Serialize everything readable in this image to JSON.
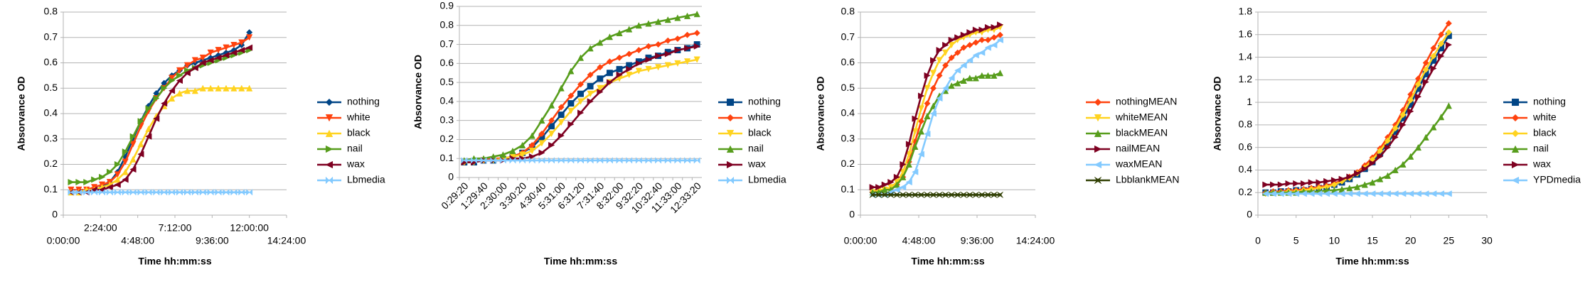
{
  "chart_data": [
    {
      "type": "line",
      "x_label": "Time hh:mm:ss",
      "y_label": "Absorvance OD",
      "x": [
        1800,
        3600,
        5400,
        7200,
        9000,
        10800,
        12600,
        14400,
        16200,
        18000,
        19800,
        21600,
        23400,
        25200,
        27000,
        28800,
        30600,
        32400,
        34200,
        36000,
        37800,
        39600,
        41400,
        43200
      ],
      "xlim": [
        0,
        51840
      ],
      "xticks": [
        {
          "value": 0,
          "label": "0:00:00"
        },
        {
          "value": 8640,
          "label": "2:24:00"
        },
        {
          "value": 17280,
          "label": "4:48:00"
        },
        {
          "value": 25920,
          "label": "7:12:00"
        },
        {
          "value": 34560,
          "label": "9:36:00"
        },
        {
          "value": 43200,
          "label": "12:00:00"
        },
        {
          "value": 51840,
          "label": "14:24:00"
        }
      ],
      "ylim": [
        0,
        0.8
      ],
      "yticks": [
        0,
        0.1,
        0.2,
        0.3,
        0.4,
        0.5,
        0.6,
        0.7,
        0.8
      ],
      "grid": true,
      "legend": "right",
      "series": [
        {
          "name": "nothing",
          "color": "#004586",
          "marker": "diamond",
          "values": [
            0.09,
            0.09,
            0.1,
            0.1,
            0.11,
            0.13,
            0.17,
            0.23,
            0.3,
            0.37,
            0.43,
            0.48,
            0.52,
            0.55,
            0.57,
            0.59,
            0.6,
            0.61,
            0.62,
            0.63,
            0.64,
            0.65,
            0.67,
            0.72
          ]
        },
        {
          "name": "white",
          "color": "#ff420e",
          "marker": "tri-down",
          "values": [
            0.1,
            0.1,
            0.1,
            0.11,
            0.12,
            0.13,
            0.16,
            0.21,
            0.28,
            0.35,
            0.41,
            0.46,
            0.5,
            0.54,
            0.57,
            0.59,
            0.61,
            0.62,
            0.64,
            0.65,
            0.66,
            0.67,
            0.68,
            0.7
          ]
        },
        {
          "name": "black",
          "color": "#ffd320",
          "marker": "tri-up",
          "values": [
            0.09,
            0.09,
            0.1,
            0.1,
            0.11,
            0.12,
            0.14,
            0.17,
            0.22,
            0.28,
            0.34,
            0.39,
            0.43,
            0.46,
            0.48,
            0.49,
            0.49,
            0.5,
            0.5,
            0.5,
            0.5,
            0.5,
            0.5,
            0.5
          ]
        },
        {
          "name": "nail",
          "color": "#579d1c",
          "marker": "tri-right",
          "values": [
            0.13,
            0.13,
            0.13,
            0.14,
            0.15,
            0.17,
            0.2,
            0.25,
            0.31,
            0.37,
            0.42,
            0.46,
            0.5,
            0.53,
            0.55,
            0.57,
            0.58,
            0.59,
            0.6,
            0.61,
            0.62,
            0.63,
            0.64,
            0.65
          ]
        },
        {
          "name": "wax",
          "color": "#7e0021",
          "marker": "tri-left",
          "values": [
            0.09,
            0.09,
            0.09,
            0.1,
            0.1,
            0.11,
            0.12,
            0.14,
            0.18,
            0.24,
            0.31,
            0.38,
            0.44,
            0.49,
            0.53,
            0.56,
            0.58,
            0.6,
            0.61,
            0.62,
            0.63,
            0.64,
            0.65,
            0.66
          ]
        },
        {
          "name": "Lbmedia",
          "color": "#83caff",
          "marker": "bowtie",
          "values": [
            0.09,
            0.09,
            0.09,
            0.09,
            0.09,
            0.09,
            0.09,
            0.09,
            0.09,
            0.09,
            0.09,
            0.09,
            0.09,
            0.09,
            0.09,
            0.09,
            0.09,
            0.09,
            0.09,
            0.09,
            0.09,
            0.09,
            0.09,
            0.09
          ]
        }
      ]
    },
    {
      "type": "line",
      "x_label": "Time hh:mm:ss",
      "y_label": "Absorvance OD",
      "categories": [
        "0:29:20",
        null,
        "1:29:40",
        null,
        "2:30:00",
        null,
        "3:30:20",
        null,
        "4:30:40",
        null,
        "5:31:00",
        null,
        "6:31:20",
        null,
        "7:31:40",
        null,
        "8:32:00",
        null,
        "9:32:20",
        null,
        "10:32:40",
        null,
        "11:33:00",
        null,
        "12:33:20"
      ],
      "ylim": [
        0,
        0.9
      ],
      "yticks": [
        0,
        0.1,
        0.2,
        0.3,
        0.4,
        0.5,
        0.6,
        0.7,
        0.8,
        0.9
      ],
      "grid": true,
      "legend": "right",
      "series": [
        {
          "name": "nothing",
          "color": "#004586",
          "marker": "square",
          "values": [
            0.08,
            0.08,
            0.09,
            0.09,
            0.1,
            0.11,
            0.13,
            0.16,
            0.21,
            0.27,
            0.33,
            0.39,
            0.44,
            0.48,
            0.52,
            0.55,
            0.57,
            0.59,
            0.61,
            0.63,
            0.64,
            0.66,
            0.67,
            0.68,
            0.7
          ]
        },
        {
          "name": "white",
          "color": "#ff420e",
          "marker": "diamond",
          "values": [
            0.08,
            0.09,
            0.09,
            0.1,
            0.1,
            0.11,
            0.13,
            0.17,
            0.23,
            0.3,
            0.37,
            0.43,
            0.49,
            0.54,
            0.58,
            0.61,
            0.63,
            0.65,
            0.67,
            0.69,
            0.7,
            0.72,
            0.73,
            0.75,
            0.76
          ]
        },
        {
          "name": "black",
          "color": "#ffd320",
          "marker": "tri-down",
          "values": [
            0.08,
            0.08,
            0.09,
            0.09,
            0.1,
            0.11,
            0.12,
            0.14,
            0.18,
            0.23,
            0.29,
            0.35,
            0.4,
            0.44,
            0.47,
            0.5,
            0.52,
            0.54,
            0.56,
            0.57,
            0.58,
            0.59,
            0.6,
            0.61,
            0.62
          ]
        },
        {
          "name": "nail",
          "color": "#579d1c",
          "marker": "tri-up",
          "values": [
            0.09,
            0.1,
            0.1,
            0.11,
            0.12,
            0.14,
            0.17,
            0.22,
            0.3,
            0.38,
            0.47,
            0.56,
            0.63,
            0.68,
            0.71,
            0.74,
            0.76,
            0.78,
            0.8,
            0.81,
            0.82,
            0.83,
            0.84,
            0.85,
            0.86
          ]
        },
        {
          "name": "wax",
          "color": "#7e0021",
          "marker": "tri-right",
          "values": [
            0.08,
            0.08,
            0.09,
            0.09,
            0.09,
            0.1,
            0.1,
            0.11,
            0.13,
            0.17,
            0.22,
            0.28,
            0.34,
            0.4,
            0.45,
            0.5,
            0.54,
            0.57,
            0.6,
            0.62,
            0.64,
            0.65,
            0.67,
            0.68,
            0.69
          ]
        },
        {
          "name": "Lbmedia",
          "color": "#83caff",
          "marker": "bowtie",
          "values": [
            0.09,
            0.09,
            0.09,
            0.09,
            0.09,
            0.09,
            0.09,
            0.09,
            0.09,
            0.09,
            0.09,
            0.09,
            0.09,
            0.09,
            0.09,
            0.09,
            0.09,
            0.09,
            0.09,
            0.09,
            0.09,
            0.09,
            0.09,
            0.09,
            0.09
          ]
        }
      ]
    },
    {
      "type": "line",
      "x_label": "Time hh:mm:ss",
      "y_label": "Absorvance OD",
      "x": [
        3600,
        5400,
        7200,
        9000,
        10800,
        12600,
        14400,
        16200,
        18000,
        19800,
        21600,
        23400,
        25200,
        27000,
        28800,
        30600,
        32400,
        34200,
        36000,
        37800,
        39600,
        41400
      ],
      "xlim": [
        0,
        51840
      ],
      "xticks": [
        {
          "value": 0,
          "label": "0:00:00"
        },
        {
          "value": 17280,
          "label": "4:48:00"
        },
        {
          "value": 34560,
          "label": "9:36:00"
        },
        {
          "value": 51840,
          "label": "14:24:00"
        }
      ],
      "ylim": [
        0,
        0.8
      ],
      "yticks": [
        0,
        0.1,
        0.2,
        0.3,
        0.4,
        0.5,
        0.6,
        0.7,
        0.8
      ],
      "grid": true,
      "legend": "right",
      "series": [
        {
          "name": "nothingMEAN",
          "color": "#ff420e",
          "marker": "diamond",
          "values": [
            0.09,
            0.09,
            0.1,
            0.1,
            0.12,
            0.15,
            0.21,
            0.29,
            0.37,
            0.44,
            0.5,
            0.55,
            0.59,
            0.62,
            0.64,
            0.66,
            0.67,
            0.68,
            0.69,
            0.69,
            0.7,
            0.71
          ]
        },
        {
          "name": "whiteMEAN",
          "color": "#ffd320",
          "marker": "tri-down",
          "values": [
            0.09,
            0.1,
            0.1,
            0.11,
            0.13,
            0.17,
            0.24,
            0.33,
            0.42,
            0.5,
            0.56,
            0.61,
            0.64,
            0.67,
            0.69,
            0.7,
            0.71,
            0.72,
            0.72,
            0.73,
            0.73,
            0.74
          ]
        },
        {
          "name": "blackMEAN",
          "color": "#579d1c",
          "marker": "tri-up",
          "values": [
            0.09,
            0.09,
            0.1,
            0.1,
            0.12,
            0.15,
            0.2,
            0.27,
            0.33,
            0.39,
            0.43,
            0.47,
            0.49,
            0.51,
            0.52,
            0.53,
            0.54,
            0.54,
            0.55,
            0.55,
            0.55,
            0.56
          ]
        },
        {
          "name": "nailMEAN",
          "color": "#7e0021",
          "marker": "tri-right",
          "values": [
            0.11,
            0.11,
            0.12,
            0.13,
            0.15,
            0.2,
            0.28,
            0.38,
            0.47,
            0.55,
            0.61,
            0.65,
            0.67,
            0.69,
            0.7,
            0.71,
            0.72,
            0.73,
            0.73,
            0.74,
            0.74,
            0.75
          ]
        },
        {
          "name": "waxMEAN",
          "color": "#83caff",
          "marker": "tri-left",
          "values": [
            0.08,
            0.08,
            0.08,
            0.09,
            0.1,
            0.11,
            0.13,
            0.17,
            0.24,
            0.32,
            0.4,
            0.46,
            0.5,
            0.54,
            0.57,
            0.59,
            0.61,
            0.63,
            0.64,
            0.66,
            0.67,
            0.69
          ]
        },
        {
          "name": "LbblankMEAN",
          "color": "#314004",
          "marker": "x",
          "values": [
            0.08,
            0.08,
            0.08,
            0.08,
            0.08,
            0.08,
            0.08,
            0.08,
            0.08,
            0.08,
            0.08,
            0.08,
            0.08,
            0.08,
            0.08,
            0.08,
            0.08,
            0.08,
            0.08,
            0.08,
            0.08,
            0.08
          ]
        }
      ]
    },
    {
      "type": "line",
      "x_label": "Time hh:mm:ss",
      "y_label": "Absorvance OD",
      "x": [
        1,
        2,
        3,
        4,
        5,
        6,
        7,
        8,
        9,
        10,
        11,
        12,
        13,
        14,
        15,
        16,
        17,
        18,
        19,
        20,
        21,
        22,
        23,
        24,
        25
      ],
      "xlim": [
        0,
        30
      ],
      "xticks": [
        0,
        5,
        10,
        15,
        20,
        25,
        30
      ],
      "ylim": [
        0,
        1.8
      ],
      "yticks": [
        0,
        0.2,
        0.4,
        0.6,
        0.8,
        1,
        1.2,
        1.4,
        1.6,
        1.8
      ],
      "grid": true,
      "legend": "right",
      "series": [
        {
          "name": "nothing",
          "color": "#004586",
          "marker": "square",
          "values": [
            0.2,
            0.2,
            0.21,
            0.21,
            0.22,
            0.22,
            0.23,
            0.24,
            0.25,
            0.27,
            0.29,
            0.32,
            0.36,
            0.41,
            0.47,
            0.55,
            0.64,
            0.74,
            0.86,
            0.98,
            1.12,
            1.25,
            1.37,
            1.48,
            1.59
          ]
        },
        {
          "name": "white",
          "color": "#ff420e",
          "marker": "diamond",
          "values": [
            0.2,
            0.21,
            0.21,
            0.22,
            0.22,
            0.23,
            0.24,
            0.25,
            0.26,
            0.28,
            0.31,
            0.34,
            0.38,
            0.44,
            0.51,
            0.59,
            0.69,
            0.8,
            0.93,
            1.07,
            1.21,
            1.35,
            1.48,
            1.6,
            1.7
          ]
        },
        {
          "name": "black",
          "color": "#ffd320",
          "marker": "diamond",
          "values": [
            0.19,
            0.2,
            0.2,
            0.21,
            0.21,
            0.22,
            0.23,
            0.24,
            0.25,
            0.27,
            0.3,
            0.33,
            0.37,
            0.42,
            0.49,
            0.57,
            0.66,
            0.77,
            0.89,
            1.02,
            1.16,
            1.29,
            1.41,
            1.52,
            1.62
          ]
        },
        {
          "name": "nail",
          "color": "#579d1c",
          "marker": "tri-up",
          "values": [
            0.2,
            0.2,
            0.2,
            0.2,
            0.2,
            0.21,
            0.21,
            0.21,
            0.22,
            0.22,
            0.23,
            0.24,
            0.25,
            0.27,
            0.29,
            0.32,
            0.35,
            0.4,
            0.45,
            0.52,
            0.6,
            0.69,
            0.78,
            0.87,
            0.97
          ]
        },
        {
          "name": "wax",
          "color": "#7e0021",
          "marker": "tri-right",
          "values": [
            0.27,
            0.27,
            0.27,
            0.28,
            0.28,
            0.28,
            0.29,
            0.29,
            0.3,
            0.31,
            0.32,
            0.34,
            0.37,
            0.41,
            0.46,
            0.52,
            0.6,
            0.69,
            0.8,
            0.92,
            1.05,
            1.18,
            1.3,
            1.41,
            1.51
          ]
        },
        {
          "name": "YPDmedia",
          "color": "#83caff",
          "marker": "tri-left",
          "values": [
            0.19,
            0.19,
            0.19,
            0.19,
            0.19,
            0.19,
            0.19,
            0.19,
            0.19,
            0.19,
            0.19,
            0.19,
            0.19,
            0.19,
            0.19,
            0.19,
            0.19,
            0.19,
            0.19,
            0.19,
            0.19,
            0.19,
            0.19,
            0.19,
            0.19
          ]
        }
      ]
    }
  ]
}
